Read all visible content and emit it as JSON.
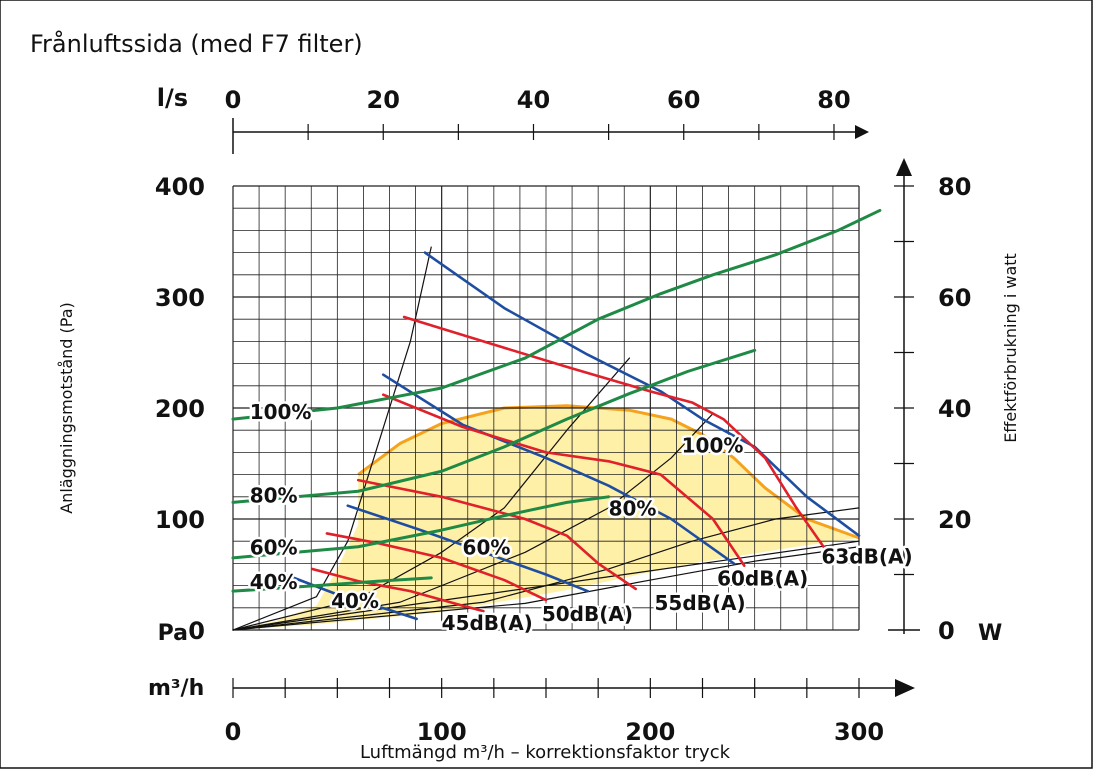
{
  "chart_data": {
    "type": "line",
    "title": "Frånluftssida (med F7 filter)",
    "xlabel": "Luftmängd m³/h – korrektionsfaktor tryck",
    "ylabel_left": "Anläggningsmotstånd (Pa)",
    "ylabel_right": "Effektförbrukning i watt",
    "x_unit": "m³/h",
    "top_unit": "l/s",
    "left_unit": "Pa",
    "right_unit": "W",
    "xlim": [
      0,
      300
    ],
    "ylim": [
      0,
      400
    ],
    "top_lim": [
      0,
      83.33
    ],
    "right_lim": [
      0,
      80
    ],
    "x_ticks": [
      "0",
      "100",
      "200",
      "300"
    ],
    "top_ticks": [
      "0",
      "20",
      "40",
      "60",
      "80"
    ],
    "y_ticks": [
      "0",
      "100",
      "200",
      "300",
      "400"
    ],
    "right_ticks": [
      "0",
      "20",
      "40",
      "60",
      "80"
    ],
    "grid": true,
    "operating_area": {
      "color": "#fff0a8",
      "boundary_color": "#f5a21d",
      "points": [
        [
          0,
          0
        ],
        [
          20,
          8
        ],
        [
          40,
          22
        ],
        [
          50,
          55
        ],
        [
          60,
          95
        ],
        [
          60,
          140
        ],
        [
          80,
          168
        ],
        [
          100,
          186
        ],
        [
          130,
          200
        ],
        [
          160,
          202
        ],
        [
          190,
          198
        ],
        [
          210,
          190
        ],
        [
          225,
          176
        ],
        [
          240,
          155
        ],
        [
          255,
          128
        ],
        [
          275,
          100
        ],
        [
          300,
          83
        ],
        [
          270,
          75
        ],
        [
          220,
          60
        ],
        [
          160,
          36
        ],
        [
          100,
          16
        ],
        [
          40,
          5
        ],
        [
          0,
          0
        ]
      ]
    },
    "fan_speed_curves": {
      "color": "#1f8a45",
      "series": [
        {
          "name": "100%",
          "x": [
            0,
            50,
            100,
            140,
            175,
            205,
            230,
            260,
            290,
            310
          ],
          "y": [
            190,
            200,
            218,
            245,
            280,
            303,
            320,
            338,
            360,
            378
          ]
        },
        {
          "name": "80%",
          "x": [
            0,
            60,
            100,
            130,
            160,
            190,
            218,
            250
          ],
          "y": [
            115,
            125,
            143,
            165,
            190,
            213,
            233,
            252
          ]
        },
        {
          "name": "60%",
          "x": [
            0,
            60,
            100,
            130,
            160,
            180
          ],
          "y": [
            65,
            75,
            90,
            103,
            115,
            120
          ]
        },
        {
          "name": "40%",
          "x": [
            0,
            40,
            70,
            95
          ],
          "y": [
            35,
            40,
            44,
            47
          ]
        }
      ],
      "labels": [
        {
          "text": "100%",
          "x": 8,
          "y": 190
        },
        {
          "text": "80%",
          "x": 8,
          "y": 115
        },
        {
          "text": "60%",
          "x": 8,
          "y": 68
        },
        {
          "text": "40%",
          "x": 8,
          "y": 37
        },
        {
          "text": "100%",
          "x": 215,
          "y": 160
        },
        {
          "text": "80%",
          "x": 180,
          "y": 103
        },
        {
          "text": "60%",
          "x": 110,
          "y": 68
        },
        {
          "text": "40%",
          "x": 47,
          "y": 20
        }
      ]
    },
    "system_curves": {
      "color": "#111111",
      "series": [
        {
          "x": [
            0,
            40,
            55,
            70,
            85,
            95
          ],
          "y": [
            0,
            30,
            80,
            170,
            260,
            345
          ]
        },
        {
          "x": [
            0,
            60,
            100,
            130,
            160,
            190
          ],
          "y": [
            0,
            28,
            70,
            110,
            180,
            245
          ]
        },
        {
          "x": [
            0,
            80,
            140,
            180,
            210,
            230
          ],
          "y": [
            0,
            25,
            70,
            110,
            155,
            195
          ]
        },
        {
          "x": [
            0,
            120,
            180,
            220,
            260,
            300
          ],
          "y": [
            0,
            25,
            55,
            80,
            100,
            110
          ]
        },
        {
          "x": [
            0,
            140,
            200,
            250,
            300
          ],
          "y": [
            0,
            24,
            45,
            62,
            75
          ]
        },
        {
          "x": [
            0,
            300
          ],
          "y": [
            0,
            80
          ]
        }
      ]
    },
    "sound_curves": {
      "series": [
        {
          "name": "45dB(A)",
          "color": "#1f4ea1",
          "x": [
            25,
            50,
            75,
            88
          ],
          "y": [
            50,
            32,
            18,
            10
          ]
        },
        {
          "name": "45dB(A)",
          "color": "#e0202a",
          "x": [
            38,
            60,
            85,
            110,
            120
          ],
          "y": [
            55,
            44,
            35,
            22,
            17
          ]
        },
        {
          "name": "50dB(A)",
          "color": "#1f4ea1",
          "x": [
            55,
            90,
            120,
            150,
            170
          ],
          "y": [
            112,
            90,
            70,
            50,
            35
          ]
        },
        {
          "name": "50dB(A)",
          "color": "#e0202a",
          "x": [
            45,
            70,
            100,
            130,
            150
          ],
          "y": [
            87,
            78,
            65,
            45,
            27
          ]
        },
        {
          "name": "55dB(A)",
          "color": "#e0202a",
          "x": [
            60,
            100,
            140,
            160,
            175,
            193
          ],
          "y": [
            135,
            120,
            100,
            85,
            60,
            37
          ]
        },
        {
          "name": "55dB(A)",
          "color": "#1f4ea1",
          "x": [
            72,
            110,
            150,
            180,
            210,
            240
          ],
          "y": [
            230,
            185,
            155,
            130,
            100,
            60
          ]
        },
        {
          "name": "60dB(A)",
          "color": "#e0202a",
          "x": [
            72,
            110,
            150,
            180,
            205,
            230,
            245
          ],
          "y": [
            212,
            183,
            160,
            152,
            140,
            100,
            58
          ]
        },
        {
          "name": "60dB(A)",
          "color": "#1f4ea1",
          "x": [
            92,
            130,
            170,
            205,
            225,
            250,
            275,
            300
          ],
          "y": [
            340,
            290,
            248,
            215,
            190,
            165,
            120,
            85
          ]
        },
        {
          "name": "63dB(A)",
          "color": "#e0202a",
          "x": [
            82,
            120,
            160,
            200,
            220,
            235,
            255,
            270,
            283
          ],
          "y": [
            282,
            260,
            237,
            215,
            205,
            190,
            155,
            110,
            75
          ]
        }
      ],
      "labels": [
        {
          "text": "45dB(A)",
          "x": 100,
          "y": 0
        },
        {
          "text": "50dB(A)",
          "x": 148,
          "y": 8
        },
        {
          "text": "55dB(A)",
          "x": 202,
          "y": 18
        },
        {
          "text": "60dB(A)",
          "x": 232,
          "y": 40
        },
        {
          "text": "63dB(A)",
          "x": 282,
          "y": 60
        }
      ]
    }
  }
}
